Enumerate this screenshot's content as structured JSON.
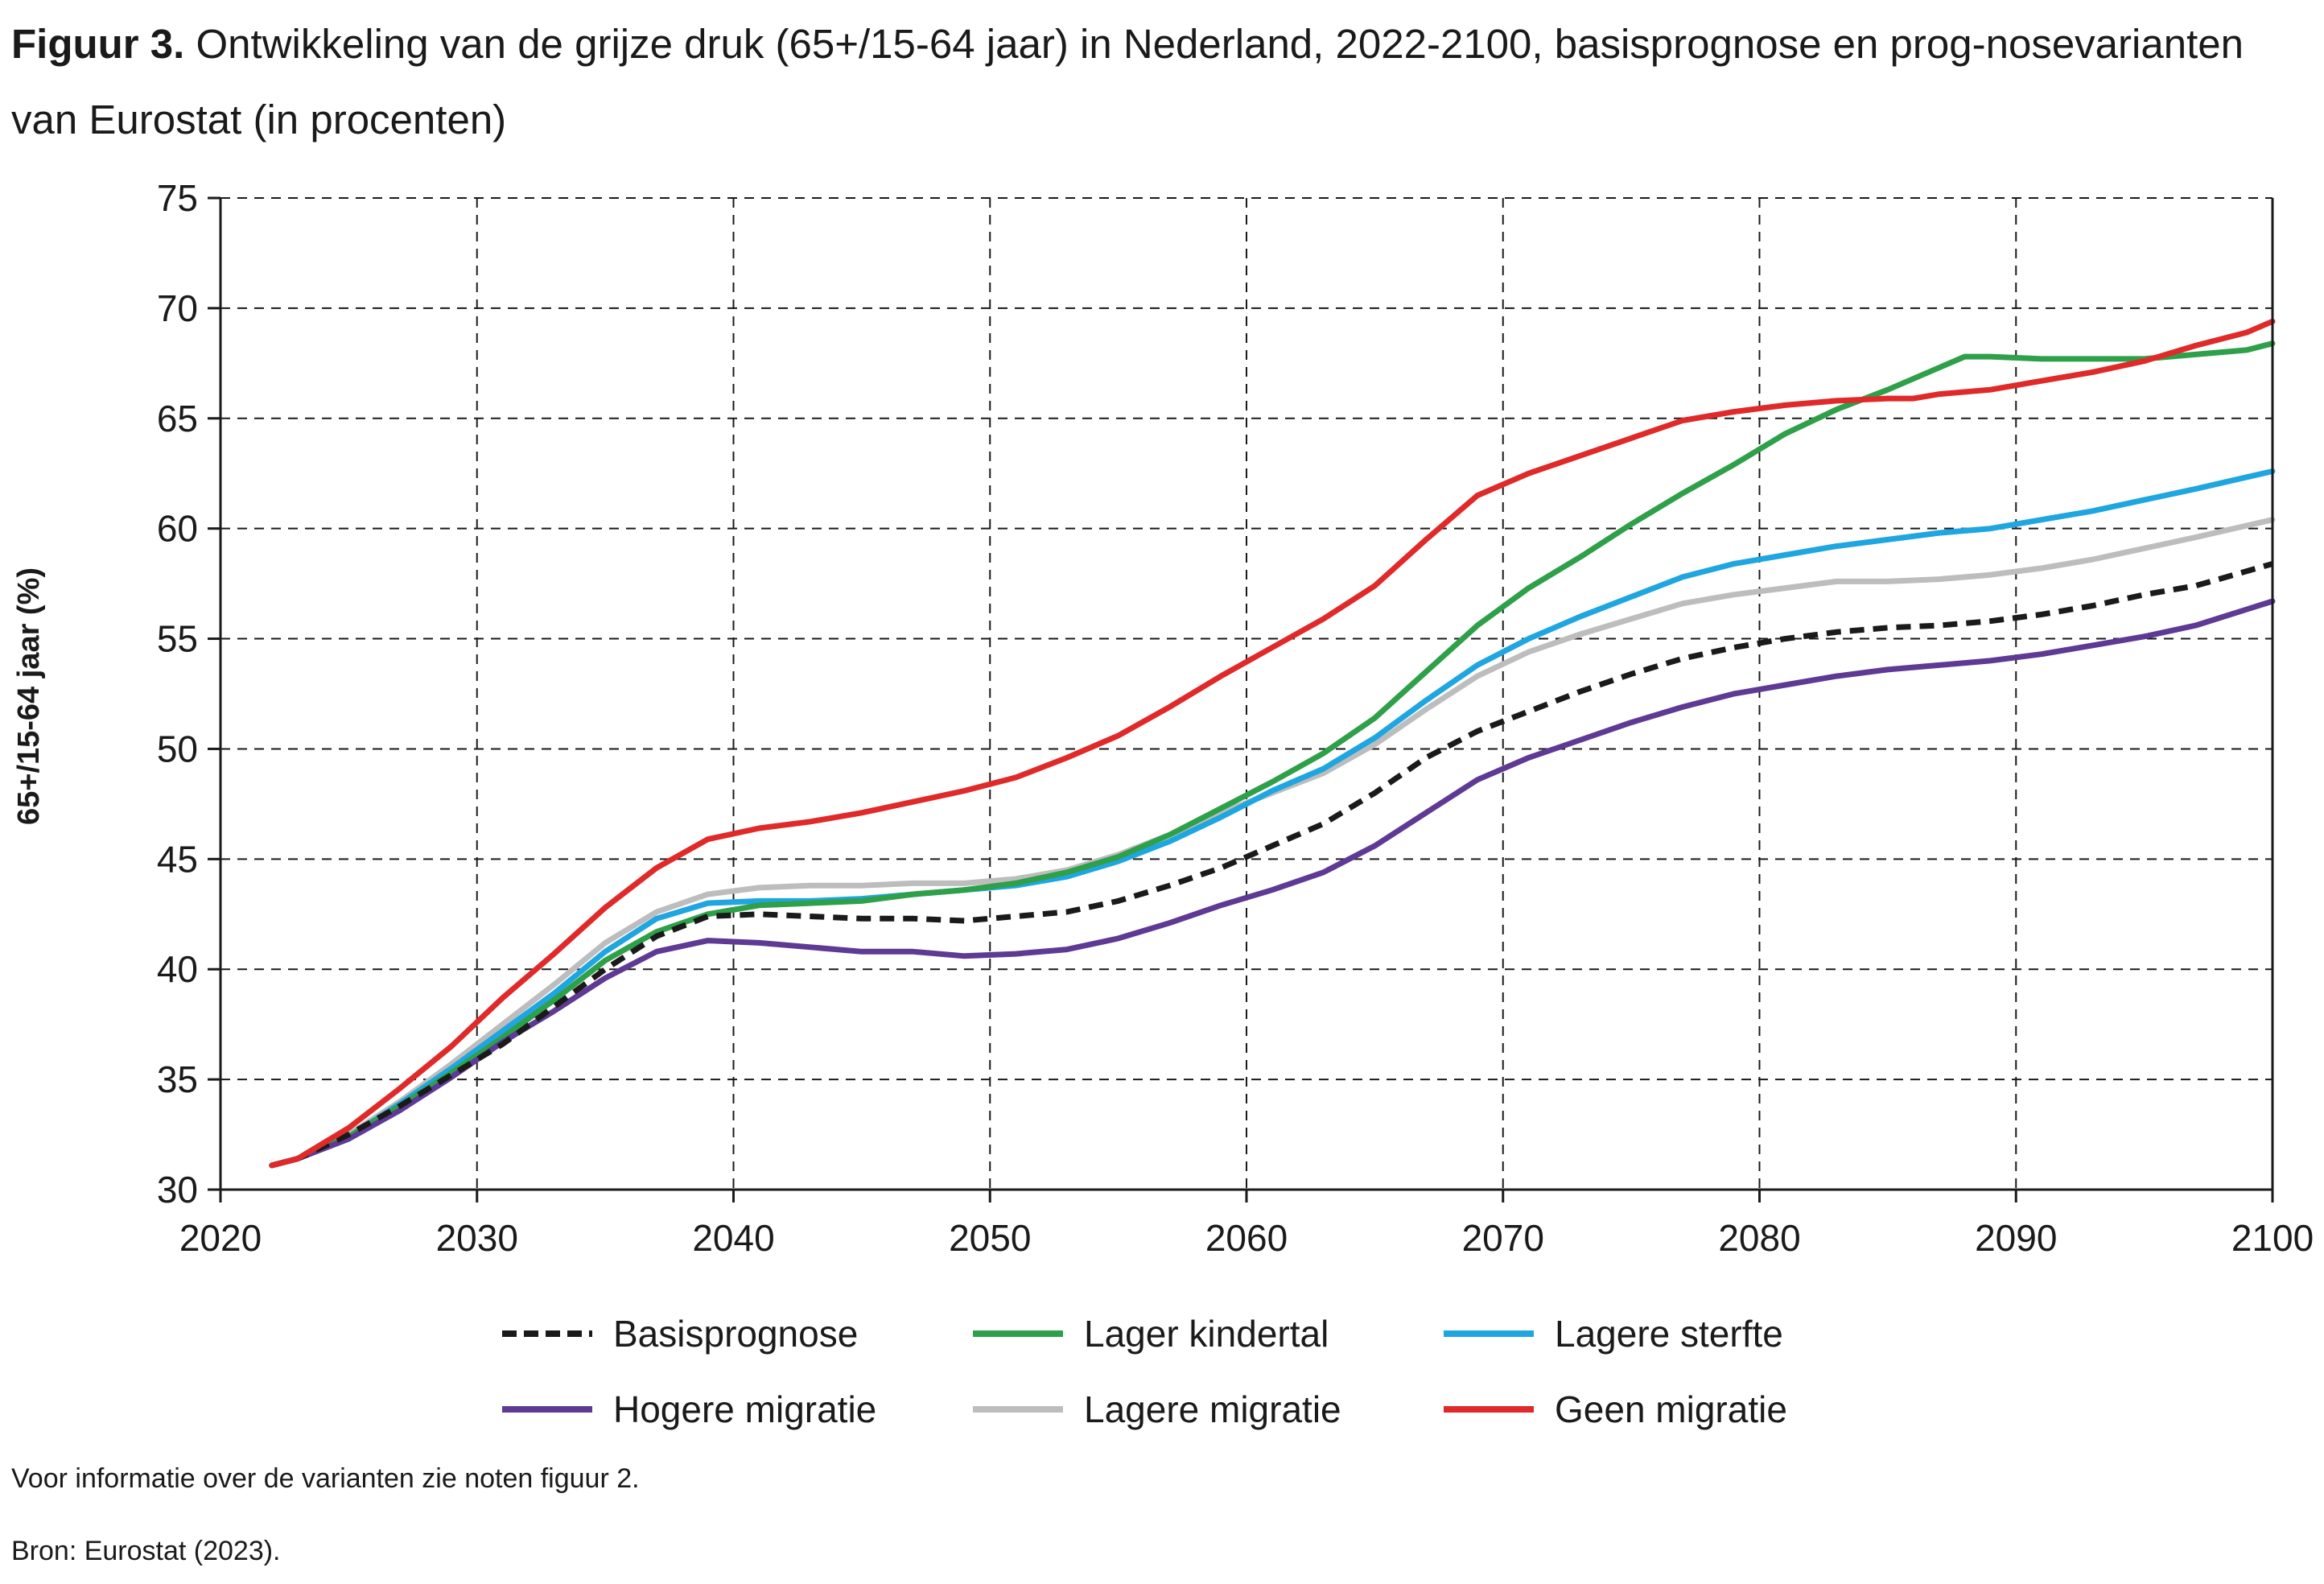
{
  "title": {
    "label": "Figuur 3.",
    "text": "Ontwikkeling van de grijze druk (65+/15-64 jaar) in Nederland, 2022-2100, basisprognose en prog-nosevarianten van Eurostat (in procenten)"
  },
  "notes": {
    "info": "Voor informatie over de varianten zie noten figuur 2.",
    "source": "Bron: Eurostat (2023)."
  },
  "chart_data": {
    "type": "line",
    "title": "",
    "xlabel": "",
    "ylabel": "65+/15-64 jaar (%)",
    "xlim": [
      2020,
      2100
    ],
    "ylim": [
      30,
      75
    ],
    "xticks": [
      2020,
      2030,
      2040,
      2050,
      2060,
      2070,
      2080,
      2090,
      2100
    ],
    "yticks": [
      30,
      35,
      40,
      45,
      50,
      55,
      60,
      65,
      70,
      75
    ],
    "grid": true,
    "legend_position": "bottom",
    "series": [
      {
        "name": "Basisprognose",
        "color": "#1a1a1a",
        "dashed": true,
        "points": [
          [
            2022,
            31.1
          ],
          [
            2023,
            31.4
          ],
          [
            2025,
            32.5
          ],
          [
            2027,
            33.8
          ],
          [
            2029,
            35.2
          ],
          [
            2031,
            36.6
          ],
          [
            2033,
            38.3
          ],
          [
            2035,
            40.0
          ],
          [
            2037,
            41.5
          ],
          [
            2039,
            42.4
          ],
          [
            2041,
            42.5
          ],
          [
            2043,
            42.4
          ],
          [
            2045,
            42.3
          ],
          [
            2047,
            42.3
          ],
          [
            2049,
            42.2
          ],
          [
            2051,
            42.4
          ],
          [
            2053,
            42.6
          ],
          [
            2055,
            43.1
          ],
          [
            2057,
            43.8
          ],
          [
            2059,
            44.6
          ],
          [
            2061,
            45.6
          ],
          [
            2063,
            46.6
          ],
          [
            2065,
            48.0
          ],
          [
            2067,
            49.6
          ],
          [
            2069,
            50.8
          ],
          [
            2071,
            51.7
          ],
          [
            2073,
            52.6
          ],
          [
            2075,
            53.4
          ],
          [
            2077,
            54.1
          ],
          [
            2079,
            54.6
          ],
          [
            2081,
            55.0
          ],
          [
            2083,
            55.3
          ],
          [
            2085,
            55.5
          ],
          [
            2087,
            55.6
          ],
          [
            2089,
            55.8
          ],
          [
            2091,
            56.1
          ],
          [
            2093,
            56.5
          ],
          [
            2095,
            57.0
          ],
          [
            2097,
            57.4
          ],
          [
            2100,
            58.4
          ]
        ]
      },
      {
        "name": "Lager kindertal",
        "color": "#2ea049",
        "points": [
          [
            2022,
            31.1
          ],
          [
            2023,
            31.4
          ],
          [
            2025,
            32.4
          ],
          [
            2027,
            33.8
          ],
          [
            2029,
            35.3
          ],
          [
            2031,
            36.9
          ],
          [
            2033,
            38.6
          ],
          [
            2035,
            40.4
          ],
          [
            2037,
            41.7
          ],
          [
            2039,
            42.5
          ],
          [
            2041,
            42.9
          ],
          [
            2043,
            43.0
          ],
          [
            2045,
            43.1
          ],
          [
            2047,
            43.4
          ],
          [
            2049,
            43.6
          ],
          [
            2051,
            43.9
          ],
          [
            2053,
            44.4
          ],
          [
            2055,
            45.1
          ],
          [
            2057,
            46.1
          ],
          [
            2059,
            47.3
          ],
          [
            2061,
            48.5
          ],
          [
            2063,
            49.8
          ],
          [
            2065,
            51.4
          ],
          [
            2067,
            53.5
          ],
          [
            2069,
            55.6
          ],
          [
            2071,
            57.3
          ],
          [
            2073,
            58.7
          ],
          [
            2075,
            60.2
          ],
          [
            2077,
            61.6
          ],
          [
            2079,
            62.9
          ],
          [
            2081,
            64.3
          ],
          [
            2083,
            65.4
          ],
          [
            2085,
            66.3
          ],
          [
            2087,
            67.3
          ],
          [
            2088,
            67.8
          ],
          [
            2089,
            67.8
          ],
          [
            2091,
            67.7
          ],
          [
            2093,
            67.7
          ],
          [
            2095,
            67.7
          ],
          [
            2097,
            67.9
          ],
          [
            2099,
            68.1
          ],
          [
            2100,
            68.4
          ]
        ]
      },
      {
        "name": "Lagere sterfte",
        "color": "#1fa6e0",
        "points": [
          [
            2022,
            31.1
          ],
          [
            2023,
            31.4
          ],
          [
            2025,
            32.4
          ],
          [
            2027,
            33.9
          ],
          [
            2029,
            35.5
          ],
          [
            2031,
            37.2
          ],
          [
            2033,
            38.9
          ],
          [
            2035,
            40.8
          ],
          [
            2037,
            42.3
          ],
          [
            2039,
            43.0
          ],
          [
            2041,
            43.1
          ],
          [
            2043,
            43.1
          ],
          [
            2045,
            43.2
          ],
          [
            2047,
            43.4
          ],
          [
            2049,
            43.6
          ],
          [
            2051,
            43.8
          ],
          [
            2053,
            44.2
          ],
          [
            2055,
            44.9
          ],
          [
            2057,
            45.8
          ],
          [
            2059,
            46.9
          ],
          [
            2061,
            48.1
          ],
          [
            2063,
            49.1
          ],
          [
            2065,
            50.5
          ],
          [
            2067,
            52.2
          ],
          [
            2069,
            53.8
          ],
          [
            2071,
            55.0
          ],
          [
            2073,
            56.0
          ],
          [
            2075,
            56.9
          ],
          [
            2077,
            57.8
          ],
          [
            2079,
            58.4
          ],
          [
            2081,
            58.8
          ],
          [
            2083,
            59.2
          ],
          [
            2085,
            59.5
          ],
          [
            2087,
            59.8
          ],
          [
            2089,
            60.0
          ],
          [
            2091,
            60.4
          ],
          [
            2093,
            60.8
          ],
          [
            2095,
            61.3
          ],
          [
            2097,
            61.8
          ],
          [
            2100,
            62.6
          ]
        ]
      },
      {
        "name": "Hogere migratie",
        "color": "#5e3a95",
        "points": [
          [
            2022,
            31.1
          ],
          [
            2023,
            31.4
          ],
          [
            2025,
            32.3
          ],
          [
            2027,
            33.6
          ],
          [
            2029,
            35.1
          ],
          [
            2031,
            36.7
          ],
          [
            2033,
            38.1
          ],
          [
            2035,
            39.6
          ],
          [
            2037,
            40.8
          ],
          [
            2039,
            41.3
          ],
          [
            2041,
            41.2
          ],
          [
            2043,
            41.0
          ],
          [
            2045,
            40.8
          ],
          [
            2047,
            40.8
          ],
          [
            2049,
            40.6
          ],
          [
            2051,
            40.7
          ],
          [
            2053,
            40.9
          ],
          [
            2055,
            41.4
          ],
          [
            2057,
            42.1
          ],
          [
            2059,
            42.9
          ],
          [
            2061,
            43.6
          ],
          [
            2063,
            44.4
          ],
          [
            2065,
            45.6
          ],
          [
            2067,
            47.1
          ],
          [
            2069,
            48.6
          ],
          [
            2071,
            49.6
          ],
          [
            2073,
            50.4
          ],
          [
            2075,
            51.2
          ],
          [
            2077,
            51.9
          ],
          [
            2079,
            52.5
          ],
          [
            2081,
            52.9
          ],
          [
            2083,
            53.3
          ],
          [
            2085,
            53.6
          ],
          [
            2087,
            53.8
          ],
          [
            2089,
            54.0
          ],
          [
            2091,
            54.3
          ],
          [
            2093,
            54.7
          ],
          [
            2095,
            55.1
          ],
          [
            2097,
            55.6
          ],
          [
            2100,
            56.7
          ]
        ]
      },
      {
        "name": "Lagere migratie",
        "color": "#bdbdbd",
        "points": [
          [
            2022,
            31.1
          ],
          [
            2023,
            31.4
          ],
          [
            2025,
            32.5
          ],
          [
            2027,
            34.0
          ],
          [
            2029,
            35.7
          ],
          [
            2031,
            37.5
          ],
          [
            2033,
            39.3
          ],
          [
            2035,
            41.2
          ],
          [
            2037,
            42.6
          ],
          [
            2039,
            43.4
          ],
          [
            2041,
            43.7
          ],
          [
            2043,
            43.8
          ],
          [
            2045,
            43.8
          ],
          [
            2047,
            43.9
          ],
          [
            2049,
            43.9
          ],
          [
            2051,
            44.1
          ],
          [
            2053,
            44.5
          ],
          [
            2055,
            45.2
          ],
          [
            2057,
            46.1
          ],
          [
            2059,
            47.1
          ],
          [
            2061,
            48.0
          ],
          [
            2063,
            48.9
          ],
          [
            2065,
            50.2
          ],
          [
            2067,
            51.8
          ],
          [
            2069,
            53.3
          ],
          [
            2071,
            54.4
          ],
          [
            2073,
            55.2
          ],
          [
            2075,
            55.9
          ],
          [
            2077,
            56.6
          ],
          [
            2079,
            57.0
          ],
          [
            2081,
            57.3
          ],
          [
            2083,
            57.6
          ],
          [
            2085,
            57.6
          ],
          [
            2087,
            57.7
          ],
          [
            2089,
            57.9
          ],
          [
            2091,
            58.2
          ],
          [
            2093,
            58.6
          ],
          [
            2095,
            59.1
          ],
          [
            2097,
            59.6
          ],
          [
            2100,
            60.4
          ]
        ]
      },
      {
        "name": "Geen migratie",
        "color": "#e02a2a",
        "points": [
          [
            2022,
            31.1
          ],
          [
            2023,
            31.4
          ],
          [
            2025,
            32.8
          ],
          [
            2027,
            34.6
          ],
          [
            2029,
            36.5
          ],
          [
            2031,
            38.7
          ],
          [
            2033,
            40.7
          ],
          [
            2035,
            42.8
          ],
          [
            2037,
            44.6
          ],
          [
            2039,
            45.9
          ],
          [
            2041,
            46.4
          ],
          [
            2043,
            46.7
          ],
          [
            2045,
            47.1
          ],
          [
            2047,
            47.6
          ],
          [
            2049,
            48.1
          ],
          [
            2051,
            48.7
          ],
          [
            2053,
            49.6
          ],
          [
            2055,
            50.6
          ],
          [
            2057,
            51.9
          ],
          [
            2059,
            53.3
          ],
          [
            2061,
            54.6
          ],
          [
            2063,
            55.9
          ],
          [
            2065,
            57.4
          ],
          [
            2067,
            59.5
          ],
          [
            2069,
            61.5
          ],
          [
            2071,
            62.5
          ],
          [
            2073,
            63.3
          ],
          [
            2075,
            64.1
          ],
          [
            2077,
            64.9
          ],
          [
            2079,
            65.3
          ],
          [
            2081,
            65.6
          ],
          [
            2083,
            65.8
          ],
          [
            2085,
            65.9
          ],
          [
            2086,
            65.9
          ],
          [
            2087,
            66.1
          ],
          [
            2089,
            66.3
          ],
          [
            2091,
            66.7
          ],
          [
            2093,
            67.1
          ],
          [
            2095,
            67.6
          ],
          [
            2097,
            68.3
          ],
          [
            2099,
            68.9
          ],
          [
            2100,
            69.4
          ]
        ]
      }
    ]
  }
}
